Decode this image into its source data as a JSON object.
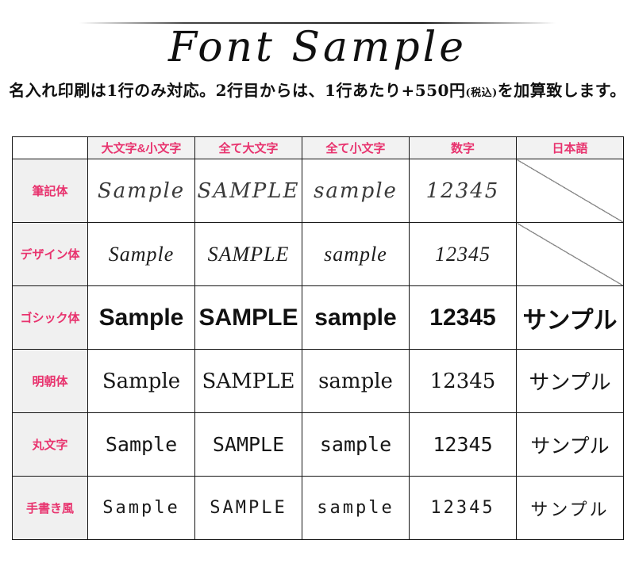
{
  "page": {
    "title": "Font Sample",
    "subtitle": {
      "main_before": "名入れ印刷は1行のみ対応。2行目からは、1行あたり+550円",
      "paren_small": "(税込)",
      "main_after": "を加算致します。"
    }
  },
  "table": {
    "corner_label": "",
    "columns": [
      "大文字&小文字",
      "全て大文字",
      "全て小文字",
      "数字",
      "日本語"
    ],
    "rows": [
      {
        "label": "筆記体",
        "font_style": "script",
        "cells": [
          "Sample",
          "SAMPLE",
          "sample",
          "12345",
          null
        ]
      },
      {
        "label": "デザイン体",
        "font_style": "design",
        "cells": [
          "Sample",
          "SAMPLE",
          "sample",
          "12345",
          null
        ]
      },
      {
        "label": "ゴシック体",
        "font_style": "gothic",
        "cells": [
          "Sample",
          "SAMPLE",
          "sample",
          "12345",
          "サンプル"
        ]
      },
      {
        "label": "明朝体",
        "font_style": "mincho",
        "cells": [
          "Sample",
          "SAMPLE",
          "sample",
          "12345",
          "サンプル"
        ]
      },
      {
        "label": "丸文字",
        "font_style": "maru",
        "cells": [
          "Sample",
          "SAMPLE",
          "sample",
          "12345",
          "サンプル"
        ]
      },
      {
        "label": "手書き風",
        "font_style": "tegaki",
        "cells": [
          "Sample",
          "SAMPLE",
          "sample",
          "12345",
          "サンプル"
        ]
      }
    ],
    "na_meaning": "not available (diagonal slash)"
  },
  "colors": {
    "accent_pink": "#e8336e",
    "column_header_bg": "#f2f2f2",
    "row_header_bg": "#f0f0f0",
    "table_border": "#151515",
    "diagonal_line": "#8a8a8a"
  }
}
